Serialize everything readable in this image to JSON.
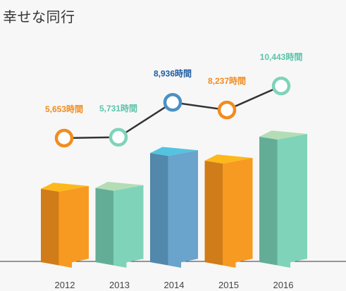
{
  "title": "幸せな同行",
  "chart_data": {
    "type": "bar",
    "title": "幸せな同行",
    "categories": [
      "2012",
      "2013",
      "2014",
      "2015",
      "2016"
    ],
    "values": [
      5653,
      5731,
      8936,
      8237,
      10443
    ],
    "value_labels": [
      "5,653時間",
      "5,731時間",
      "8,936時間",
      "8,237時間",
      "10,443時間"
    ],
    "unit": "時間",
    "overlay_line": true,
    "grid": false,
    "colors": {
      "bar_front": [
        "#f79a22",
        "#7fd3b9",
        "#6aa3cc",
        "#f79a22",
        "#7fd3b9"
      ],
      "bar_side": [
        "#d07c18",
        "#63ad97",
        "#5188ab",
        "#d07c18",
        "#63ad97"
      ],
      "bar_top": [
        "#fdb81c",
        "#b4ddb6",
        "#54c3df",
        "#fdb81c",
        "#b4ddb6"
      ],
      "marker": [
        "#f28c1f",
        "#7fd3b9",
        "#4a90c4",
        "#f28c1f",
        "#7fd3b9"
      ],
      "label": [
        "#f28c1f",
        "#5cc4a9",
        "#1f5da2",
        "#f28c1f",
        "#5cc4a9"
      ],
      "line": "#333333",
      "baseline": "#333333"
    }
  }
}
